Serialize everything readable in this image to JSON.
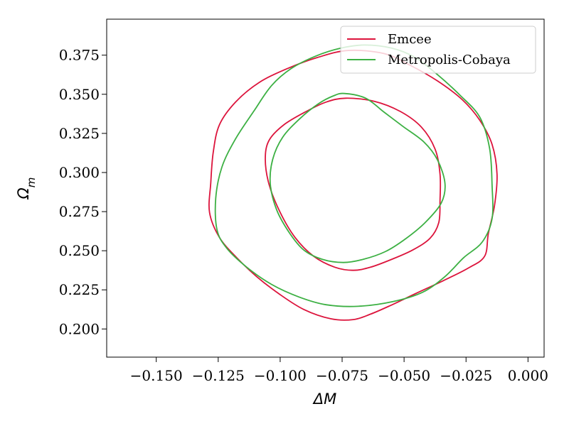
{
  "chart_data": {
    "type": "contour",
    "xlabel": "ΔM",
    "ylabel": "Ω_m",
    "xlim": [
      -0.17,
      0.0065
    ],
    "ylim": [
      0.182,
      0.398
    ],
    "x_ticks": [
      -0.15,
      -0.125,
      -0.1,
      -0.075,
      -0.05,
      -0.025,
      0.0
    ],
    "x_tick_labels": [
      "−0.150",
      "−0.125",
      "−0.100",
      "−0.075",
      "−0.050",
      "−0.025",
      "0.000"
    ],
    "y_ticks": [
      0.2,
      0.225,
      0.25,
      0.275,
      0.3,
      0.325,
      0.35,
      0.375
    ],
    "y_tick_labels": [
      "0.200",
      "0.225",
      "0.250",
      "0.275",
      "0.300",
      "0.325",
      "0.350",
      "0.375"
    ],
    "legend_position": "upper-right",
    "series": [
      {
        "name": "Emcee",
        "color": "#dc143c",
        "contours": [
          [
            [
              -0.0735,
              0.3475
            ],
            [
              -0.062,
              0.3455
            ],
            [
              -0.0515,
              0.339
            ],
            [
              -0.043,
              0.329
            ],
            [
              -0.0375,
              0.315
            ],
            [
              -0.0355,
              0.299
            ],
            [
              -0.0355,
              0.282
            ],
            [
              -0.036,
              0.268
            ],
            [
              -0.0395,
              0.258
            ],
            [
              -0.0465,
              0.2505
            ],
            [
              -0.055,
              0.2445
            ],
            [
              -0.0635,
              0.2395
            ],
            [
              -0.0705,
              0.2375
            ],
            [
              -0.078,
              0.2395
            ],
            [
              -0.0865,
              0.2465
            ],
            [
              -0.094,
              0.2585
            ],
            [
              -0.1,
              0.2745
            ],
            [
              -0.1045,
              0.2925
            ],
            [
              -0.106,
              0.3085
            ],
            [
              -0.1045,
              0.3205
            ],
            [
              -0.0985,
              0.3305
            ],
            [
              -0.0895,
              0.339
            ],
            [
              -0.0815,
              0.345
            ],
            [
              -0.0735,
              0.3475
            ]
          ],
          [
            [
              -0.0725,
              0.378
            ],
            [
              -0.058,
              0.376
            ],
            [
              -0.0475,
              0.3685
            ],
            [
              -0.0365,
              0.3585
            ],
            [
              -0.0265,
              0.3465
            ],
            [
              -0.0195,
              0.3335
            ],
            [
              -0.0145,
              0.318
            ],
            [
              -0.0125,
              0.299
            ],
            [
              -0.0135,
              0.279
            ],
            [
              -0.016,
              0.261
            ],
            [
              -0.0175,
              0.2465
            ],
            [
              -0.024,
              0.239
            ],
            [
              -0.034,
              0.231
            ],
            [
              -0.0455,
              0.2225
            ],
            [
              -0.0555,
              0.215
            ],
            [
              -0.0635,
              0.2095
            ],
            [
              -0.0705,
              0.206
            ],
            [
              -0.0795,
              0.2065
            ],
            [
              -0.0905,
              0.2125
            ],
            [
              -0.1005,
              0.2225
            ],
            [
              -0.1095,
              0.2335
            ],
            [
              -0.1175,
              0.2455
            ],
            [
              -0.1245,
              0.2585
            ],
            [
              -0.1285,
              0.2745
            ],
            [
              -0.128,
              0.2935
            ],
            [
              -0.127,
              0.313
            ],
            [
              -0.1245,
              0.3305
            ],
            [
              -0.118,
              0.345
            ],
            [
              -0.1085,
              0.3575
            ],
            [
              -0.097,
              0.3665
            ],
            [
              -0.085,
              0.3735
            ],
            [
              -0.0725,
              0.378
            ]
          ]
        ]
      },
      {
        "name": "Metropolis-Cobaya",
        "color": "#3cb043",
        "contours": [
          [
            [
              -0.074,
              0.3505
            ],
            [
              -0.0655,
              0.3475
            ],
            [
              -0.058,
              0.3385
            ],
            [
              -0.0505,
              0.3295
            ],
            [
              -0.042,
              0.3195
            ],
            [
              -0.0365,
              0.308
            ],
            [
              -0.0335,
              0.293
            ],
            [
              -0.035,
              0.2805
            ],
            [
              -0.0415,
              0.268
            ],
            [
              -0.0495,
              0.2575
            ],
            [
              -0.0575,
              0.2495
            ],
            [
              -0.0665,
              0.2445
            ],
            [
              -0.0745,
              0.2425
            ],
            [
              -0.083,
              0.2445
            ],
            [
              -0.0905,
              0.2505
            ],
            [
              -0.0965,
              0.262
            ],
            [
              -0.1015,
              0.2765
            ],
            [
              -0.104,
              0.293
            ],
            [
              -0.103,
              0.3085
            ],
            [
              -0.099,
              0.3225
            ],
            [
              -0.092,
              0.3345
            ],
            [
              -0.0845,
              0.344
            ],
            [
              -0.0785,
              0.349
            ],
            [
              -0.074,
              0.3505
            ]
          ],
          [
            [
              -0.066,
              0.3815
            ],
            [
              -0.055,
              0.3795
            ],
            [
              -0.0455,
              0.3735
            ],
            [
              -0.0365,
              0.3625
            ],
            [
              -0.0275,
              0.3495
            ],
            [
              -0.0195,
              0.3355
            ],
            [
              -0.0155,
              0.3155
            ],
            [
              -0.0145,
              0.292
            ],
            [
              -0.0145,
              0.2705
            ],
            [
              -0.0185,
              0.2555
            ],
            [
              -0.026,
              0.2455
            ],
            [
              -0.0335,
              0.2335
            ],
            [
              -0.0425,
              0.2235
            ],
            [
              -0.0545,
              0.2175
            ],
            [
              -0.0685,
              0.2145
            ],
            [
              -0.0815,
              0.2155
            ],
            [
              -0.0925,
              0.2205
            ],
            [
              -0.1035,
              0.2285
            ],
            [
              -0.1135,
              0.2395
            ],
            [
              -0.1215,
              0.2515
            ],
            [
              -0.1255,
              0.2635
            ],
            [
              -0.126,
              0.2835
            ],
            [
              -0.1235,
              0.3035
            ],
            [
              -0.118,
              0.3215
            ],
            [
              -0.1105,
              0.3395
            ],
            [
              -0.1035,
              0.3555
            ],
            [
              -0.0955,
              0.3665
            ],
            [
              -0.0855,
              0.3745
            ],
            [
              -0.0755,
              0.3795
            ],
            [
              -0.066,
              0.3815
            ]
          ]
        ]
      }
    ]
  }
}
